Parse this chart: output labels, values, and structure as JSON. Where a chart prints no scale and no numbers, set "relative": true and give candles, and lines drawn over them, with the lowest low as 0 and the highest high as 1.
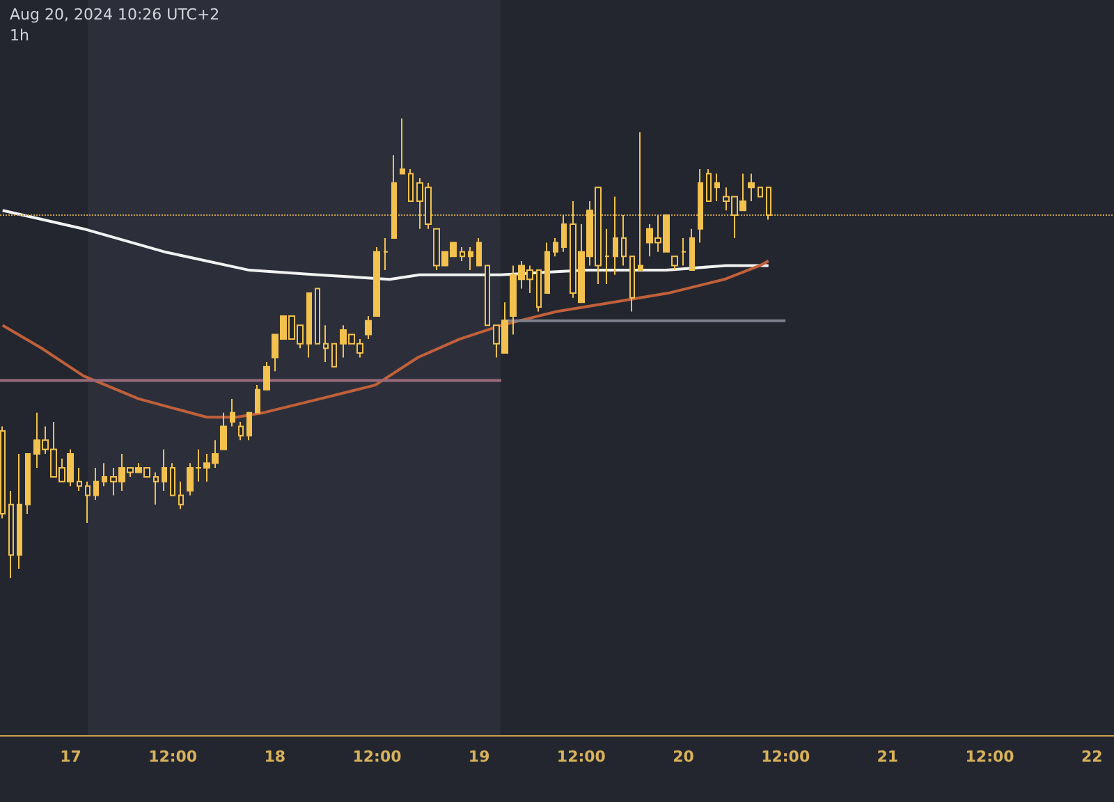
{
  "chart_data": {
    "type": "candlestick",
    "title": "Aug 20, 2024 10:26 UTC+2",
    "subtitle": "1h",
    "relative": true,
    "color": "#f2c14e",
    "grid": false,
    "xlim": [
      "2024-08-16T15:42",
      "2024-08-22T02:36"
    ],
    "xticks": [
      {
        "value": "2024-08-17T00:00",
        "label": "17"
      },
      {
        "value": "2024-08-17T12:00",
        "label": "12:00"
      },
      {
        "value": "2024-08-18T00:00",
        "label": "18"
      },
      {
        "value": "2024-08-18T12:00",
        "label": "12:00"
      },
      {
        "value": "2024-08-19T00:00",
        "label": "19"
      },
      {
        "value": "2024-08-19T12:00",
        "label": "12:00"
      },
      {
        "value": "2024-08-20T00:00",
        "label": "20"
      },
      {
        "value": "2024-08-20T12:00",
        "label": "12:00"
      },
      {
        "value": "2024-08-21T00:00",
        "label": "21"
      },
      {
        "value": "2024-08-21T12:00",
        "label": "12:00"
      },
      {
        "value": "2024-08-22T00:00",
        "label": "22"
      }
    ],
    "x": [
      "2024-08-16T16:00",
      "2024-08-16T17:00",
      "2024-08-16T18:00",
      "2024-08-16T19:00",
      "2024-08-16T20:00",
      "2024-08-16T21:00",
      "2024-08-16T22:00",
      "2024-08-16T23:00",
      "2024-08-17T00:00",
      "2024-08-17T01:00",
      "2024-08-17T02:00",
      "2024-08-17T03:00",
      "2024-08-17T04:00",
      "2024-08-17T05:00",
      "2024-08-17T06:00",
      "2024-08-17T07:00",
      "2024-08-17T08:00",
      "2024-08-17T09:00",
      "2024-08-17T10:00",
      "2024-08-17T11:00",
      "2024-08-17T12:00",
      "2024-08-17T13:00",
      "2024-08-17T14:00",
      "2024-08-17T15:00",
      "2024-08-17T16:00",
      "2024-08-17T17:00",
      "2024-08-17T18:00",
      "2024-08-17T19:00",
      "2024-08-17T20:00",
      "2024-08-17T21:00",
      "2024-08-17T22:00",
      "2024-08-17T23:00",
      "2024-08-18T00:00",
      "2024-08-18T01:00",
      "2024-08-18T02:00",
      "2024-08-18T03:00",
      "2024-08-18T04:00",
      "2024-08-18T05:00",
      "2024-08-18T06:00",
      "2024-08-18T07:00",
      "2024-08-18T08:00",
      "2024-08-18T09:00",
      "2024-08-18T10:00",
      "2024-08-18T11:00",
      "2024-08-18T12:00",
      "2024-08-18T13:00",
      "2024-08-18T14:00",
      "2024-08-18T15:00",
      "2024-08-18T16:00",
      "2024-08-18T17:00",
      "2024-08-18T18:00",
      "2024-08-18T19:00",
      "2024-08-18T20:00",
      "2024-08-18T21:00",
      "2024-08-18T22:00",
      "2024-08-18T23:00",
      "2024-08-19T00:00",
      "2024-08-19T01:00",
      "2024-08-19T02:00",
      "2024-08-19T03:00",
      "2024-08-19T04:00",
      "2024-08-19T05:00",
      "2024-08-19T06:00",
      "2024-08-19T07:00",
      "2024-08-19T08:00",
      "2024-08-19T09:00",
      "2024-08-19T10:00",
      "2024-08-19T11:00",
      "2024-08-19T12:00",
      "2024-08-19T13:00",
      "2024-08-19T14:00",
      "2024-08-19T15:00",
      "2024-08-19T16:00",
      "2024-08-19T17:00",
      "2024-08-19T18:00",
      "2024-08-19T19:00",
      "2024-08-19T20:00",
      "2024-08-19T21:00",
      "2024-08-19T22:00",
      "2024-08-19T23:00",
      "2024-08-20T00:00",
      "2024-08-20T01:00",
      "2024-08-20T02:00",
      "2024-08-20T03:00",
      "2024-08-20T04:00",
      "2024-08-20T05:00",
      "2024-08-20T06:00",
      "2024-08-20T07:00",
      "2024-08-20T08:00",
      "2024-08-20T09:00",
      "2024-08-20T10:00"
    ],
    "ohlc": [
      [
        0.32,
        0.33,
        0.13,
        0.14
      ],
      [
        0.16,
        0.19,
        0,
        0.05
      ],
      [
        0.05,
        0.27,
        0.02,
        0.16
      ],
      [
        0.16,
        0.27,
        0.14,
        0.27
      ],
      [
        0.27,
        0.36,
        0.24,
        0.3
      ],
      [
        0.3,
        0.33,
        0.27,
        0.28
      ],
      [
        0.28,
        0.34,
        0.22,
        0.22
      ],
      [
        0.24,
        0.26,
        0.21,
        0.21
      ],
      [
        0.21,
        0.28,
        0.2,
        0.27
      ],
      [
        0.21,
        0.24,
        0.19,
        0.2
      ],
      [
        0.2,
        0.21,
        0.12,
        0.18
      ],
      [
        0.18,
        0.24,
        0.17,
        0.21
      ],
      [
        0.21,
        0.25,
        0.2,
        0.22
      ],
      [
        0.22,
        0.24,
        0.18,
        0.21
      ],
      [
        0.21,
        0.27,
        0.19,
        0.24
      ],
      [
        0.24,
        0.24,
        0.22,
        0.23
      ],
      [
        0.23,
        0.25,
        0.23,
        0.24
      ],
      [
        0.24,
        0.24,
        0.22,
        0.22
      ],
      [
        0.22,
        0.23,
        0.16,
        0.21
      ],
      [
        0.21,
        0.28,
        0.19,
        0.24
      ],
      [
        0.24,
        0.25,
        0.18,
        0.18
      ],
      [
        0.18,
        0.21,
        0.15,
        0.16
      ],
      [
        0.19,
        0.25,
        0.18,
        0.24
      ],
      [
        0.24,
        0.28,
        0.21,
        0.24
      ],
      [
        0.24,
        0.27,
        0.21,
        0.25
      ],
      [
        0.25,
        0.3,
        0.24,
        0.27
      ],
      [
        0.28,
        0.36,
        0.28,
        0.33
      ],
      [
        0.34,
        0.39,
        0.33,
        0.36
      ],
      [
        0.33,
        0.34,
        0.3,
        0.31
      ],
      [
        0.31,
        0.36,
        0.3,
        0.36
      ],
      [
        0.36,
        0.42,
        0.36,
        0.41
      ],
      [
        0.41,
        0.47,
        0.41,
        0.46
      ],
      [
        0.48,
        0.53,
        0.45,
        0.53
      ],
      [
        0.52,
        0.57,
        0.52,
        0.57
      ],
      [
        0.57,
        0.57,
        0.52,
        0.52
      ],
      [
        0.55,
        0.55,
        0.5,
        0.51
      ],
      [
        0.51,
        0.62,
        0.48,
        0.62
      ],
      [
        0.63,
        0.63,
        0.51,
        0.51
      ],
      [
        0.51,
        0.55,
        0.47,
        0.5
      ],
      [
        0.51,
        0.51,
        0.46,
        0.46
      ],
      [
        0.51,
        0.55,
        0.48,
        0.54
      ],
      [
        0.53,
        0.53,
        0.51,
        0.51
      ],
      [
        0.51,
        0.52,
        0.48,
        0.49
      ],
      [
        0.53,
        0.57,
        0.52,
        0.56
      ],
      [
        0.57,
        0.72,
        0.57,
        0.71
      ],
      [
        0.71,
        0.74,
        0.67,
        0.71
      ],
      [
        0.74,
        0.92,
        0.74,
        0.86
      ],
      [
        0.88,
        1,
        0.88,
        0.89
      ],
      [
        0.88,
        0.89,
        0.82,
        0.82
      ],
      [
        0.86,
        0.87,
        0.76,
        0.82
      ],
      [
        0.85,
        0.86,
        0.76,
        0.77
      ],
      [
        0.76,
        0.76,
        0.67,
        0.68
      ],
      [
        0.68,
        0.71,
        0.68,
        0.71
      ],
      [
        0.7,
        0.73,
        0.7,
        0.73
      ],
      [
        0.71,
        0.72,
        0.69,
        0.7
      ],
      [
        0.7,
        0.72,
        0.67,
        0.71
      ],
      [
        0.68,
        0.74,
        0.68,
        0.73
      ],
      [
        0.68,
        0.68,
        0.55,
        0.55
      ],
      [
        0.55,
        0.55,
        0.48,
        0.51
      ],
      [
        0.49,
        0.6,
        0.49,
        0.56
      ],
      [
        0.57,
        0.68,
        0.53,
        0.66
      ],
      [
        0.65,
        0.69,
        0.63,
        0.68
      ],
      [
        0.67,
        0.68,
        0.62,
        0.65
      ],
      [
        0.67,
        0.67,
        0.58,
        0.59
      ],
      [
        0.62,
        0.73,
        0.62,
        0.71
      ],
      [
        0.71,
        0.74,
        0.7,
        0.73
      ],
      [
        0.72,
        0.79,
        0.71,
        0.77
      ],
      [
        0.77,
        0.82,
        0.61,
        0.62
      ],
      [
        0.6,
        0.77,
        0.6,
        0.71
      ],
      [
        0.7,
        0.82,
        0.68,
        0.8
      ],
      [
        0.85,
        0.85,
        0.64,
        0.68
      ],
      [
        0.7,
        0.76,
        0.64,
        0.7
      ],
      [
        0.7,
        0.83,
        0.66,
        0.74
      ],
      [
        0.74,
        0.79,
        0.68,
        0.7
      ],
      [
        0.7,
        0.7,
        0.58,
        0.61
      ],
      [
        0.67,
        0.97,
        0.67,
        0.68
      ],
      [
        0.73,
        0.77,
        0.7,
        0.76
      ],
      [
        0.74,
        0.79,
        0.71,
        0.73
      ],
      [
        0.71,
        0.79,
        0.71,
        0.79
      ],
      [
        0.7,
        0.7,
        0.67,
        0.68
      ],
      [
        0.71,
        0.74,
        0.68,
        0.71
      ],
      [
        0.67,
        0.76,
        0.67,
        0.74
      ],
      [
        0.76,
        0.89,
        0.73,
        0.86
      ],
      [
        0.88,
        0.89,
        0.82,
        0.82
      ],
      [
        0.85,
        0.88,
        0.82,
        0.86
      ],
      [
        0.83,
        0.85,
        0.8,
        0.82
      ],
      [
        0.83,
        0.83,
        0.74,
        0.79
      ],
      [
        0.8,
        0.88,
        0.8,
        0.82
      ],
      [
        0.85,
        0.88,
        0.82,
        0.86
      ],
      [
        0.85,
        0.85,
        0.83,
        0.83
      ],
      [
        0.85,
        0.85,
        0.78,
        0.79
      ]
    ],
    "series": [
      {
        "type": "line",
        "color": "#f2f2f2",
        "x": [
          "2024-08-16T16:00",
          "2024-08-17T01:30",
          "2024-08-17T11:00",
          "2024-08-17T21:00",
          "2024-08-18T05:00",
          "2024-08-18T13:30",
          "2024-08-18T17:00",
          "2024-08-19T02:30",
          "2024-08-19T12:30",
          "2024-08-19T22:00",
          "2024-08-20T05:00",
          "2024-08-20T10:00"
        ],
        "values": [
          0.8,
          0.76,
          0.71,
          0.67,
          0.66,
          0.65,
          0.66,
          0.66,
          0.67,
          0.67,
          0.68,
          0.68
        ]
      },
      {
        "type": "line",
        "color": "#c0603a",
        "x": [
          "2024-08-16T16:00",
          "2024-08-16T20:36",
          "2024-08-17T01:30",
          "2024-08-17T08:00",
          "2024-08-17T16:00",
          "2024-08-17T19:30",
          "2024-08-17T22:42",
          "2024-08-18T05:18",
          "2024-08-18T11:48",
          "2024-08-18T16:48",
          "2024-08-18T21:42",
          "2024-08-19T02:36",
          "2024-08-19T09:06",
          "2024-08-19T15:42",
          "2024-08-19T22:12",
          "2024-08-20T04:48",
          "2024-08-20T09:00",
          "2024-08-20T10:00"
        ],
        "values": [
          0.55,
          0.5,
          0.44,
          0.39,
          0.35,
          0.35,
          0.36,
          0.39,
          0.42,
          0.48,
          0.52,
          0.55,
          0.58,
          0.6,
          0.62,
          0.65,
          0.68,
          0.69
        ]
      },
      {
        "type": "line",
        "color": "#9a6a7a",
        "x": [
          "2024-08-16T15:42",
          "2024-08-19T02:36"
        ],
        "values": [
          0.43,
          0.43
        ]
      },
      {
        "type": "line",
        "color": "#7d808c",
        "x": [
          "2024-08-19T02:36",
          "2024-08-20T12:00"
        ],
        "values": [
          0.56,
          0.56
        ]
      }
    ],
    "ref_lines": [
      {
        "axis": "y",
        "value": 0.79,
        "color": "#c9a14a",
        "line_style": "dotted"
      }
    ],
    "bands": [
      {
        "axis": "x",
        "from": "2024-08-17T02:00",
        "to": "2024-08-19T02:30",
        "color": "#2c2f3a"
      }
    ]
  }
}
